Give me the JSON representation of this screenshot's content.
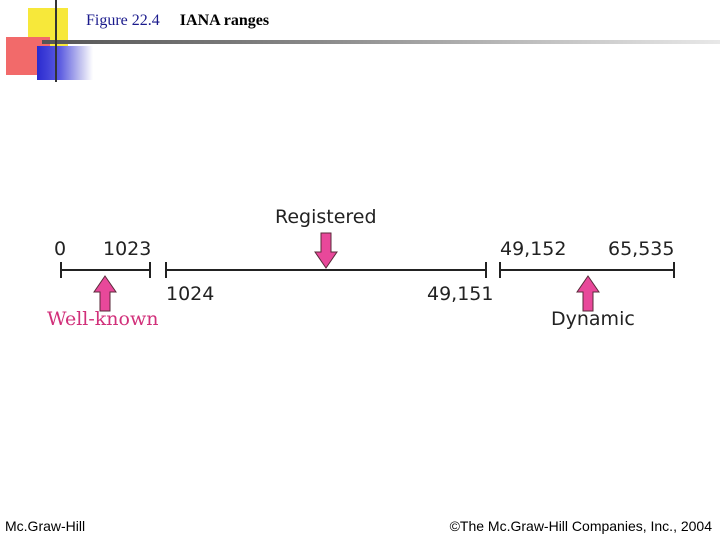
{
  "header": {
    "figure_number": "Figure 22.4",
    "figure_title": "IANA ranges"
  },
  "diagram": {
    "range_labels": {
      "registered": "Registered",
      "well_known": "Well-known",
      "dynamic": "Dynamic"
    },
    "boundary_values": {
      "start": "0",
      "well_known_end": "1023",
      "registered_start": "1024",
      "registered_end": "49,151",
      "dynamic_start": "49,152",
      "end": "65,535"
    },
    "colors": {
      "arrow_fill": "#e8489a",
      "well_known_text": "#d1307a",
      "line": "#222222"
    }
  },
  "footer": {
    "left": "Mc.Graw-Hill",
    "right": "©The Mc.Graw-Hill Companies, Inc., 2004"
  }
}
